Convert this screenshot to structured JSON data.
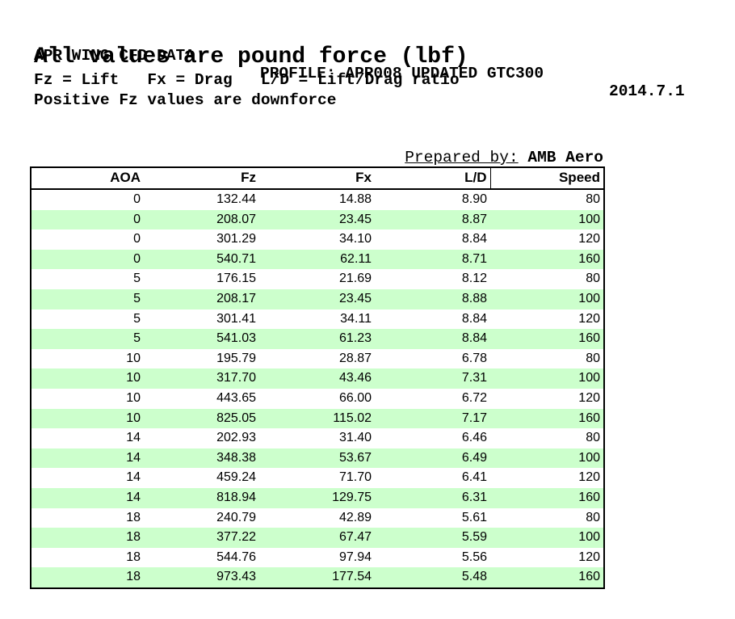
{
  "header": {
    "title": "APR WING CFD DATA",
    "profile": "PROFILE: APR008 UPDATED GTC300",
    "date": "2014.7.1",
    "subtitle": "All values are pound force (lbf)",
    "legend": "Fz = Lift   Fx = Drag   L/D = Lift/Drag ratio",
    "note": "Positive Fz values are downforce"
  },
  "prepared_by": {
    "label": "Prepared by:",
    "value": "AMB Aero"
  },
  "table": {
    "columns": [
      "AOA",
      "Fz",
      "Fx",
      "L/D",
      "Speed"
    ],
    "rows": [
      [
        "0",
        "132.44",
        "14.88",
        "8.90",
        "80"
      ],
      [
        "0",
        "208.07",
        "23.45",
        "8.87",
        "100"
      ],
      [
        "0",
        "301.29",
        "34.10",
        "8.84",
        "120"
      ],
      [
        "0",
        "540.71",
        "62.11",
        "8.71",
        "160"
      ],
      [
        "5",
        "176.15",
        "21.69",
        "8.12",
        "80"
      ],
      [
        "5",
        "208.17",
        "23.45",
        "8.88",
        "100"
      ],
      [
        "5",
        "301.41",
        "34.11",
        "8.84",
        "120"
      ],
      [
        "5",
        "541.03",
        "61.23",
        "8.84",
        "160"
      ],
      [
        "10",
        "195.79",
        "28.87",
        "6.78",
        "80"
      ],
      [
        "10",
        "317.70",
        "43.46",
        "7.31",
        "100"
      ],
      [
        "10",
        "443.65",
        "66.00",
        "6.72",
        "120"
      ],
      [
        "10",
        "825.05",
        "115.02",
        "7.17",
        "160"
      ],
      [
        "14",
        "202.93",
        "31.40",
        "6.46",
        "80"
      ],
      [
        "14",
        "348.38",
        "53.67",
        "6.49",
        "100"
      ],
      [
        "14",
        "459.24",
        "71.70",
        "6.41",
        "120"
      ],
      [
        "14",
        "818.94",
        "129.75",
        "6.31",
        "160"
      ],
      [
        "18",
        "240.79",
        "42.89",
        "5.61",
        "80"
      ],
      [
        "18",
        "377.22",
        "67.47",
        "5.59",
        "100"
      ],
      [
        "18",
        "544.76",
        "97.94",
        "5.56",
        "120"
      ],
      [
        "18",
        "973.43",
        "177.54",
        "5.48",
        "160"
      ]
    ]
  },
  "colors": {
    "stripe": "#ccffcc",
    "border": "#000000",
    "text": "#000000"
  }
}
